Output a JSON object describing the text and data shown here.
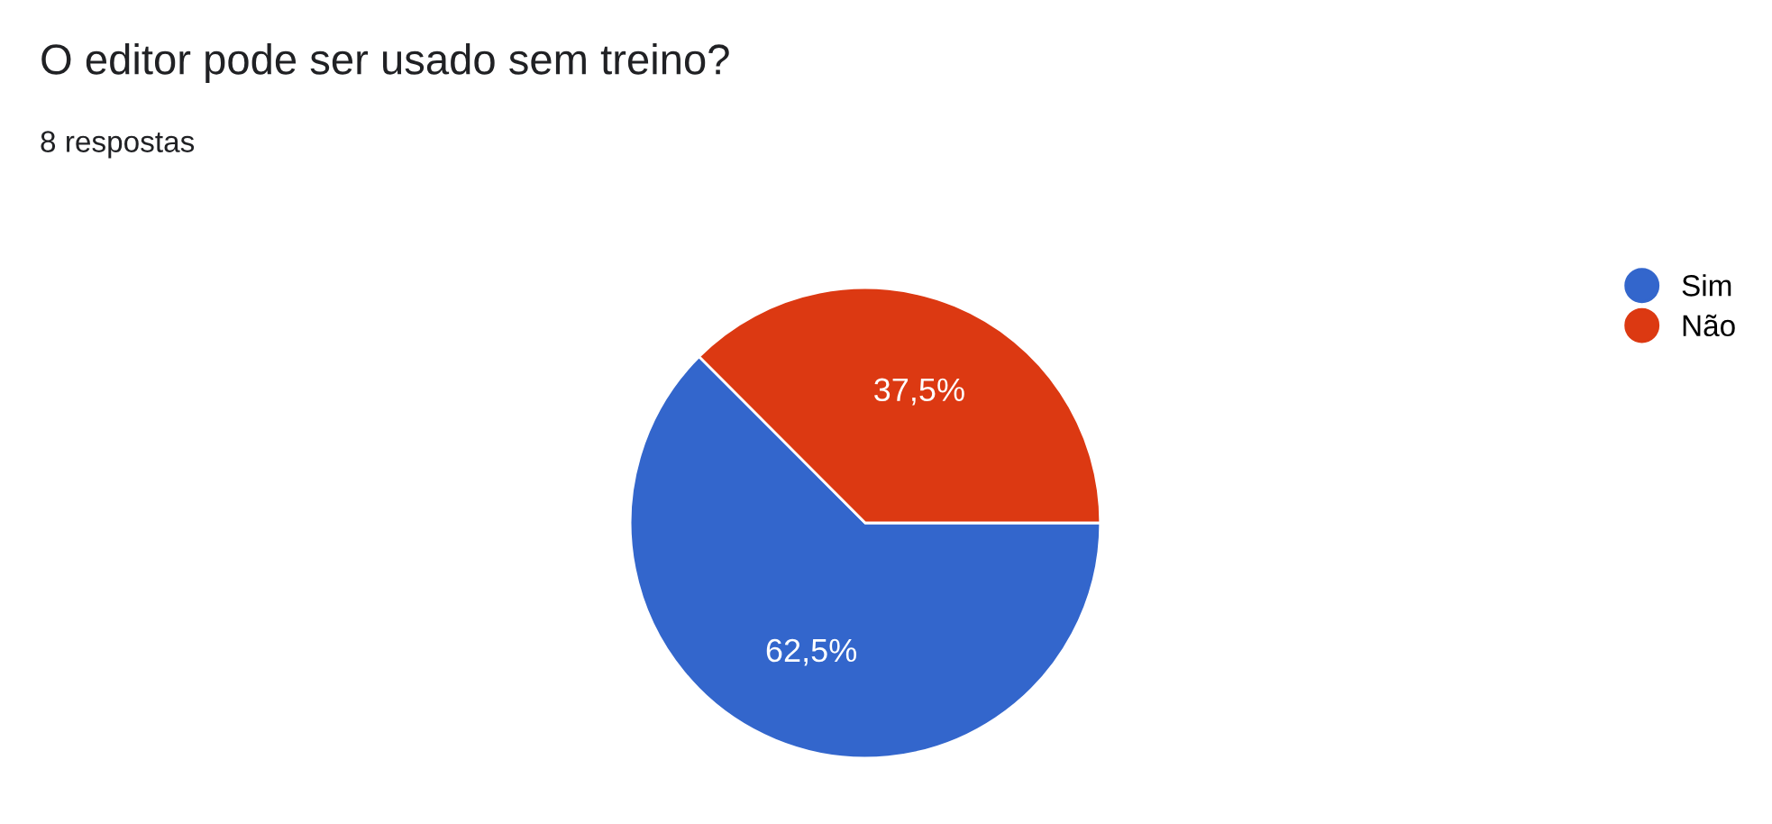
{
  "chart_data": {
    "type": "pie",
    "title": "O editor pode ser usado sem treino?",
    "subtitle": "8 respostas",
    "categories": [
      "Sim",
      "Não"
    ],
    "values": [
      62.5,
      37.5
    ],
    "colors": [
      "#3366cc",
      "#dc3912"
    ],
    "value_labels": [
      "62,5%",
      "37,5%"
    ],
    "legend": "top right"
  }
}
